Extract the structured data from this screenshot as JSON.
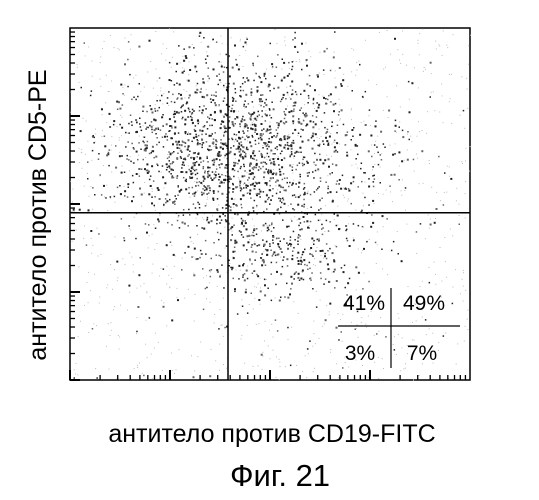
{
  "chart_data": {
    "type": "scatter",
    "title": "",
    "xlabel": "антитело против CD19-FITC",
    "ylabel": "антитело против CD5-PE",
    "caption": "Фиг. 21",
    "xlim": [
      0,
      1
    ],
    "ylim": [
      0,
      1
    ],
    "grid": false,
    "gates": {
      "x": 0.395,
      "y": 0.475
    },
    "quadrants": [
      {
        "position": "upper-left",
        "label": "41%"
      },
      {
        "position": "upper-right",
        "label": "49%"
      },
      {
        "position": "lower-left",
        "label": "3%"
      },
      {
        "position": "lower-right",
        "label": "7%"
      }
    ],
    "populations": [
      {
        "cx": 0.42,
        "cy": 0.7,
        "sx": 0.15,
        "sy": 0.12,
        "n": 950
      },
      {
        "cx": 0.3,
        "cy": 0.62,
        "sx": 0.12,
        "sy": 0.1,
        "n": 350
      },
      {
        "cx": 0.55,
        "cy": 0.55,
        "sx": 0.15,
        "sy": 0.12,
        "n": 300
      },
      {
        "cx": 0.52,
        "cy": 0.36,
        "sx": 0.1,
        "sy": 0.06,
        "n": 220
      },
      {
        "cx": 0.45,
        "cy": 0.4,
        "sx": 0.3,
        "sy": 0.28,
        "n": 220
      }
    ]
  }
}
